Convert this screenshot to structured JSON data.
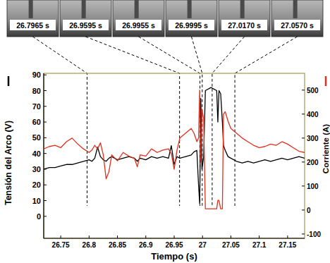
{
  "chart_data": {
    "type": "line",
    "xlabel": "Tiempo (s)",
    "xlim": [
      26.72,
      27.18
    ],
    "xticks": [
      26.75,
      26.8,
      26.85,
      26.9,
      26.95,
      27,
      27.05,
      27.1,
      27.15
    ],
    "ylim": [
      -14,
      91
    ],
    "yticks": [
      0,
      10,
      20,
      30,
      40,
      50,
      60,
      70,
      80,
      90
    ],
    "y2lim": [
      -118,
      570
    ],
    "y2ticks": [
      -100,
      0,
      100,
      200,
      300,
      400,
      500
    ],
    "x": [
      26.72,
      26.73,
      26.74,
      26.75,
      26.76,
      26.77,
      26.78,
      26.79,
      26.8,
      26.805,
      26.81,
      26.815,
      26.82,
      26.825,
      26.83,
      26.835,
      26.84,
      26.85,
      26.86,
      26.87,
      26.88,
      26.885,
      26.89,
      26.9,
      26.91,
      26.92,
      26.93,
      26.94,
      26.945,
      26.95,
      26.955,
      26.96,
      26.97,
      26.98,
      26.985,
      26.99,
      26.993,
      26.995,
      26.997,
      26.999,
      27.002,
      27.005,
      27.015,
      27.025,
      27.027,
      27.029,
      27.032,
      27.035,
      27.037,
      27.04,
      27.045,
      27.05,
      27.06,
      27.07,
      27.08,
      27.09,
      27.1,
      27.11,
      27.12,
      27.13,
      27.14,
      27.15,
      27.16,
      27.17,
      27.18
    ],
    "series": [
      {
        "name": "Tensión del Arco (V)",
        "color": "#000000",
        "values": [
          30,
          31,
          31,
          32,
          33,
          33,
          34,
          35,
          36,
          35,
          37,
          44,
          38,
          36,
          35,
          37,
          38,
          36,
          37,
          38,
          37,
          35,
          37,
          36,
          38,
          37,
          38,
          37,
          45,
          33,
          38,
          37,
          38,
          39,
          41,
          42,
          20,
          8,
          75,
          30,
          38,
          80,
          82,
          80,
          60,
          80,
          78,
          60,
          45,
          42,
          38,
          37,
          35,
          34,
          35,
          34,
          35,
          36,
          35,
          36,
          37,
          36,
          37,
          38,
          37
        ]
      },
      {
        "name": "Corriente (A)",
        "color": "#e0301e",
        "axis": "y2",
        "values": [
          255,
          265,
          270,
          260,
          285,
          300,
          275,
          255,
          240,
          250,
          270,
          255,
          280,
          230,
          130,
          160,
          230,
          205,
          240,
          225,
          215,
          180,
          230,
          225,
          255,
          240,
          250,
          255,
          235,
          170,
          250,
          300,
          320,
          340,
          320,
          285,
          300,
          500,
          200,
          420,
          380,
          5,
          5,
          5,
          40,
          40,
          5,
          5,
          400,
          410,
          370,
          340,
          320,
          300,
          285,
          270,
          260,
          265,
          275,
          270,
          285,
          275,
          260,
          245,
          240
        ]
      }
    ],
    "annotations": [
      {
        "label": "26.7965 s",
        "x": 26.7965
      },
      {
        "label": "26.9595 s",
        "x": 26.9595
      },
      {
        "label": "26.9955 s",
        "x": 26.9955
      },
      {
        "label": "26.9995 s",
        "x": 26.9995
      },
      {
        "label": "27.0170 s",
        "x": 27.017
      },
      {
        "label": "27.0570 s",
        "x": 27.057
      }
    ]
  }
}
